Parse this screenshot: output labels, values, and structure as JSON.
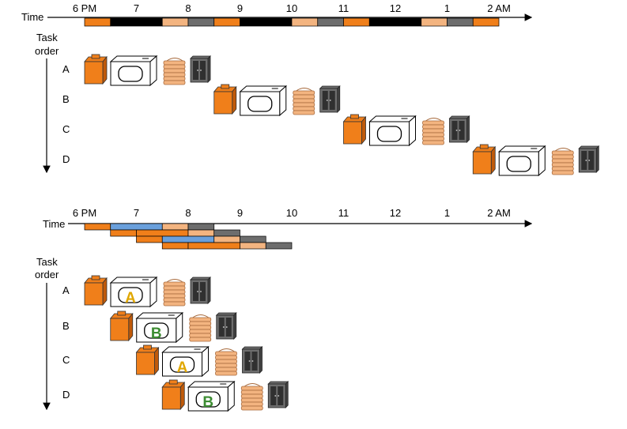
{
  "colors": {
    "washer_body": "#f07f1a",
    "washer_dark": "#c05a0a",
    "dryer": "#ffffff",
    "fold": "#f3b480",
    "fold_stripe": "#a86a3c",
    "stash": "#6d6d6d",
    "stash_dark": "#303030",
    "black_seg": "#000000",
    "blue_seg": "#6aa0dc",
    "letter_A": "#e0a700",
    "letter_B": "#3c8c32"
  },
  "top": {
    "time_label": "Time",
    "task_order_label": [
      "Task",
      "order"
    ],
    "ticks": [
      "6 PM",
      "7",
      "8",
      "9",
      "10",
      "11",
      "12",
      "1",
      "2 AM"
    ],
    "tasks": [
      "A",
      "B",
      "C",
      "D"
    ],
    "timeline": [
      {
        "start": 0,
        "end": 0.5,
        "stage": "wash"
      },
      {
        "start": 0.5,
        "end": 1.5,
        "stage": "dry"
      },
      {
        "start": 1.5,
        "end": 2,
        "stage": "fold"
      },
      {
        "start": 2,
        "end": 2.5,
        "stage": "stash"
      },
      {
        "start": 2.5,
        "end": 3,
        "stage": "wash"
      },
      {
        "start": 3,
        "end": 4,
        "stage": "dry"
      },
      {
        "start": 4,
        "end": 4.5,
        "stage": "fold"
      },
      {
        "start": 4.5,
        "end": 5,
        "stage": "stash"
      },
      {
        "start": 5,
        "end": 5.5,
        "stage": "wash"
      },
      {
        "start": 5.5,
        "end": 6.5,
        "stage": "dry"
      },
      {
        "start": 6.5,
        "end": 7,
        "stage": "fold"
      },
      {
        "start": 7,
        "end": 7.5,
        "stage": "stash"
      },
      {
        "start": 7.5,
        "end": 8,
        "stage": "wash"
      }
    ],
    "task_starts": [
      0,
      2.5,
      5,
      7.5
    ]
  },
  "bottom": {
    "time_label": "Time",
    "task_order_label": [
      "Task",
      "order"
    ],
    "ticks": [
      "6 PM",
      "7",
      "8",
      "9",
      "10",
      "11",
      "12",
      "1",
      "2 AM"
    ],
    "tasks": [
      "A",
      "B",
      "C",
      "D"
    ],
    "dryer_letters": [
      "A",
      "B",
      "A",
      "B"
    ],
    "task_starts": [
      0,
      0.5,
      1,
      1.5
    ],
    "bars": [
      [
        {
          "start": 0,
          "end": 0.5,
          "stage": "wash"
        },
        {
          "start": 0.5,
          "end": 1.5,
          "stage": "dryA"
        },
        {
          "start": 1.5,
          "end": 2,
          "stage": "fold"
        },
        {
          "start": 2,
          "end": 2.5,
          "stage": "stash"
        }
      ],
      [
        {
          "start": 0.5,
          "end": 1,
          "stage": "wash"
        },
        {
          "start": 1,
          "end": 2,
          "stage": "dryB"
        },
        {
          "start": 2,
          "end": 2.5,
          "stage": "fold"
        },
        {
          "start": 2.5,
          "end": 3,
          "stage": "stash"
        }
      ],
      [
        {
          "start": 1,
          "end": 1.5,
          "stage": "wash"
        },
        {
          "start": 1.5,
          "end": 2.5,
          "stage": "dryA"
        },
        {
          "start": 2.5,
          "end": 3,
          "stage": "fold"
        },
        {
          "start": 3,
          "end": 3.5,
          "stage": "stash"
        }
      ],
      [
        {
          "start": 1.5,
          "end": 2,
          "stage": "wash"
        },
        {
          "start": 2,
          "end": 3,
          "stage": "dryB"
        },
        {
          "start": 3,
          "end": 3.5,
          "stage": "fold"
        },
        {
          "start": 3.5,
          "end": 4,
          "stage": "stash"
        }
      ]
    ]
  }
}
